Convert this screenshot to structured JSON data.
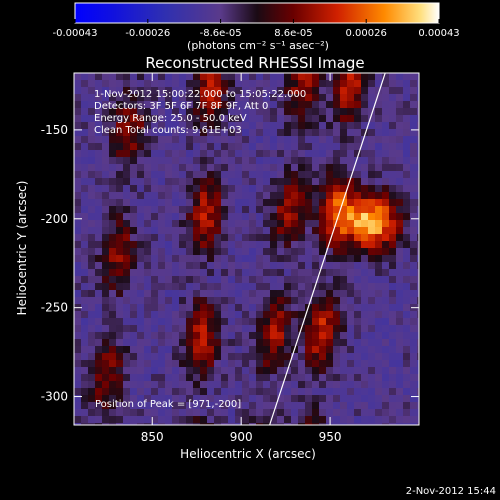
{
  "chart_data": {
    "type": "heatmap",
    "title": "Reconstructed RHESSI Image",
    "xlabel": "Heliocentric X (arcsec)",
    "ylabel": "Heliocentric Y (arcsec)",
    "xlim": [
      806,
      1000
    ],
    "ylim": [
      -316,
      -118
    ],
    "xticks": [
      850,
      900,
      950
    ],
    "yticks": [
      -150,
      -200,
      -250,
      -300
    ],
    "colorbar": {
      "ticks": [
        "-0.00043",
        "-0.00026",
        "-8.6e-05",
        "8.6e-05",
        "0.00026",
        "0.00043"
      ],
      "min": -0.00043,
      "max": 0.00043,
      "unit_label": "(photons cm⁻² s⁻¹ asec⁻²)"
    },
    "annotations": [
      "1-Nov-2012 15:00:22.000 to 15:05:22.000",
      "Detectors: 3F 5F 6F 7F 8F 9F, Att 0",
      "Energy Range: 25.0 - 50.0 keV",
      "Clean     Total counts: 9.61E+03"
    ],
    "peak_label": "Position of Peak = [971,-200]",
    "peak": [
      971,
      -200
    ],
    "limb_line": [
      [
        916,
        -316
      ],
      [
        981,
        -118
      ]
    ],
    "timestamp": "2-Nov-2012 15:44"
  }
}
